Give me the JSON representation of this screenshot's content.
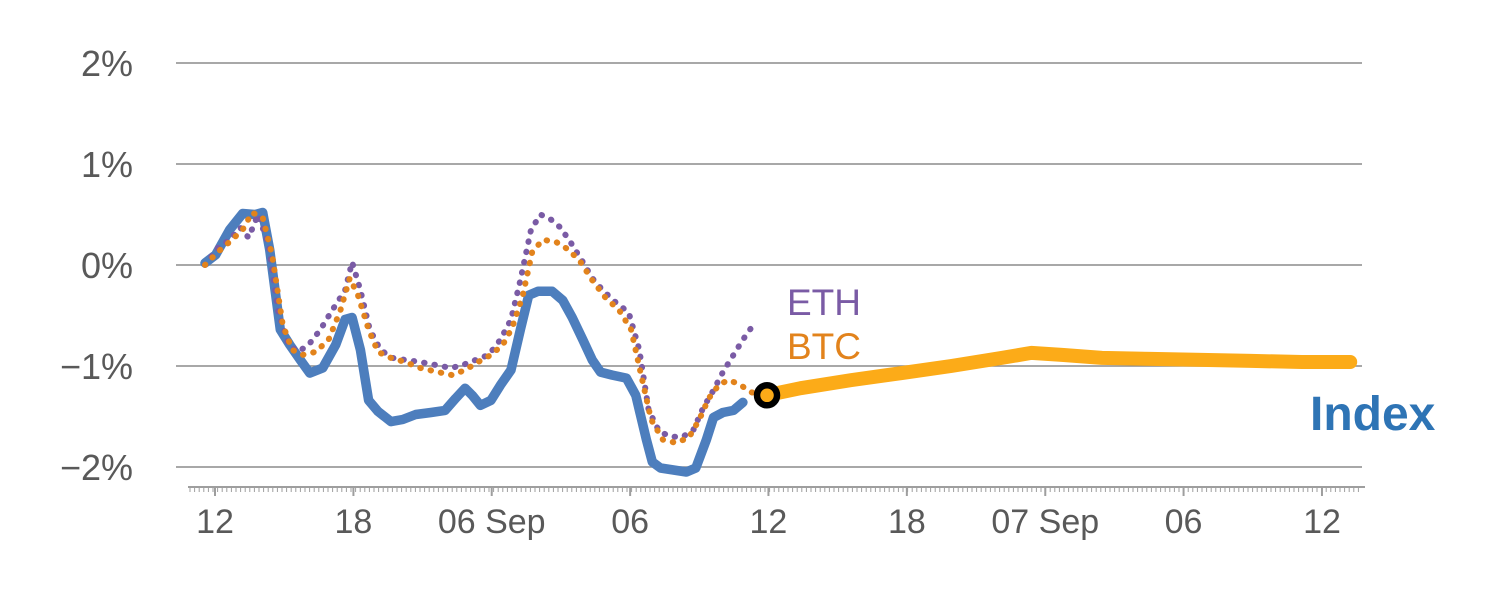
{
  "chart_data": {
    "type": "line",
    "title": "",
    "y_axis": {
      "ticks": [
        {
          "v": 2,
          "label": "2%"
        },
        {
          "v": 1,
          "label": "1%"
        },
        {
          "v": 0,
          "label": "0%"
        },
        {
          "v": -1,
          "label": "−1%"
        },
        {
          "v": -2,
          "label": "−2%"
        }
      ],
      "ylim": [
        -2.2,
        2.2
      ],
      "grid": true
    },
    "x_axis": {
      "ticks": [
        {
          "u": 2.55,
          "label": "12"
        },
        {
          "u": 14.31,
          "label": "18"
        },
        {
          "u": 26.06,
          "label": "06 Sep"
        },
        {
          "u": 37.82,
          "label": "06"
        },
        {
          "u": 49.57,
          "label": "12"
        },
        {
          "u": 61.33,
          "label": "18"
        },
        {
          "u": 73.09,
          "label": "07 Sep"
        },
        {
          "u": 84.84,
          "label": "06"
        },
        {
          "u": 96.6,
          "label": "12"
        }
      ]
    },
    "series": [
      {
        "id": "index",
        "color": "#4d7ebd",
        "width": 9.5,
        "dash": "solid",
        "points": [
          [
            1.7,
            0.02
          ],
          [
            2.6,
            0.1
          ],
          [
            3.8,
            0.35
          ],
          [
            4.9,
            0.51
          ],
          [
            6.0,
            0.5
          ],
          [
            6.6,
            0.52
          ],
          [
            7.2,
            0.15
          ],
          [
            8.1,
            -0.64
          ],
          [
            8.9,
            -0.79
          ],
          [
            9.8,
            -0.94
          ],
          [
            10.6,
            -1.07
          ],
          [
            11.7,
            -1.02
          ],
          [
            12.8,
            -0.79
          ],
          [
            13.6,
            -0.54
          ],
          [
            14.2,
            -0.52
          ],
          [
            14.9,
            -0.84
          ],
          [
            15.6,
            -1.34
          ],
          [
            16.4,
            -1.45
          ],
          [
            17.5,
            -1.55
          ],
          [
            18.5,
            -1.53
          ],
          [
            19.6,
            -1.48
          ],
          [
            20.9,
            -1.46
          ],
          [
            22.1,
            -1.44
          ],
          [
            23.0,
            -1.32
          ],
          [
            23.8,
            -1.22
          ],
          [
            24.4,
            -1.29
          ],
          [
            25.1,
            -1.39
          ],
          [
            26.0,
            -1.34
          ],
          [
            26.8,
            -1.19
          ],
          [
            27.7,
            -1.04
          ],
          [
            28.5,
            -0.64
          ],
          [
            29.2,
            -0.3
          ],
          [
            30.0,
            -0.26
          ],
          [
            31.2,
            -0.26
          ],
          [
            32.1,
            -0.35
          ],
          [
            32.9,
            -0.52
          ],
          [
            33.8,
            -0.74
          ],
          [
            34.6,
            -0.94
          ],
          [
            35.3,
            -1.06
          ],
          [
            36.3,
            -1.09
          ],
          [
            37.5,
            -1.12
          ],
          [
            38.3,
            -1.29
          ],
          [
            39.2,
            -1.73
          ],
          [
            39.7,
            -1.95
          ],
          [
            40.4,
            -2.01
          ],
          [
            41.5,
            -2.03
          ],
          [
            42.6,
            -2.05
          ],
          [
            43.4,
            -2.01
          ],
          [
            44.3,
            -1.73
          ],
          [
            44.9,
            -1.51
          ],
          [
            45.7,
            -1.46
          ],
          [
            46.6,
            -1.44
          ],
          [
            47.4,
            -1.36
          ]
        ]
      },
      {
        "id": "eth",
        "color": "#7a5ba5",
        "width": 6,
        "dash": "dotted",
        "points": [
          [
            1.7,
            0.0
          ],
          [
            2.8,
            0.17
          ],
          [
            3.8,
            0.25
          ],
          [
            4.7,
            0.37
          ],
          [
            5.4,
            0.27
          ],
          [
            6.2,
            0.5
          ],
          [
            7.1,
            0.2
          ],
          [
            7.9,
            -0.45
          ],
          [
            8.8,
            -0.79
          ],
          [
            9.6,
            -0.86
          ],
          [
            10.5,
            -0.79
          ],
          [
            11.5,
            -0.64
          ],
          [
            12.5,
            -0.45
          ],
          [
            13.6,
            -0.25
          ],
          [
            14.2,
            0.03
          ],
          [
            14.9,
            -0.25
          ],
          [
            15.7,
            -0.64
          ],
          [
            16.6,
            -0.84
          ],
          [
            17.6,
            -0.92
          ],
          [
            18.7,
            -0.94
          ],
          [
            20.0,
            -0.96
          ],
          [
            21.3,
            -0.99
          ],
          [
            22.6,
            -1.02
          ],
          [
            23.6,
            -0.99
          ],
          [
            24.7,
            -0.94
          ],
          [
            25.8,
            -0.89
          ],
          [
            26.8,
            -0.74
          ],
          [
            27.7,
            -0.54
          ],
          [
            28.5,
            -0.15
          ],
          [
            29.4,
            0.35
          ],
          [
            30.2,
            0.5
          ],
          [
            31.1,
            0.45
          ],
          [
            31.9,
            0.37
          ],
          [
            32.9,
            0.2
          ],
          [
            33.8,
            0.03
          ],
          [
            34.6,
            -0.13
          ],
          [
            35.5,
            -0.25
          ],
          [
            36.6,
            -0.37
          ],
          [
            37.7,
            -0.47
          ],
          [
            38.6,
            -0.84
          ],
          [
            39.4,
            -1.44
          ],
          [
            40.3,
            -1.65
          ],
          [
            41.3,
            -1.7
          ],
          [
            42.3,
            -1.7
          ],
          [
            43.2,
            -1.63
          ],
          [
            44.0,
            -1.42
          ],
          [
            44.9,
            -1.24
          ],
          [
            45.7,
            -1.06
          ],
          [
            46.6,
            -0.89
          ],
          [
            47.4,
            -0.74
          ],
          [
            48.3,
            -0.59
          ]
        ]
      },
      {
        "id": "btc",
        "color": "#e2831c",
        "width": 6,
        "dash": "dotted",
        "points": [
          [
            1.7,
            0.0
          ],
          [
            2.8,
            0.13
          ],
          [
            3.8,
            0.23
          ],
          [
            4.9,
            0.35
          ],
          [
            5.7,
            0.52
          ],
          [
            6.6,
            0.47
          ],
          [
            7.4,
            0.1
          ],
          [
            8.3,
            -0.59
          ],
          [
            9.1,
            -0.84
          ],
          [
            10.0,
            -0.89
          ],
          [
            11.1,
            -0.86
          ],
          [
            12.2,
            -0.74
          ],
          [
            13.2,
            -0.45
          ],
          [
            14.0,
            -0.13
          ],
          [
            14.7,
            -0.3
          ],
          [
            15.6,
            -0.64
          ],
          [
            16.4,
            -0.86
          ],
          [
            17.5,
            -0.92
          ],
          [
            18.7,
            -0.96
          ],
          [
            20.0,
            -1.02
          ],
          [
            21.5,
            -1.06
          ],
          [
            22.7,
            -1.09
          ],
          [
            23.8,
            -1.04
          ],
          [
            24.9,
            -0.96
          ],
          [
            26.0,
            -0.89
          ],
          [
            27.0,
            -0.79
          ],
          [
            27.8,
            -0.62
          ],
          [
            28.7,
            -0.3
          ],
          [
            29.5,
            0.13
          ],
          [
            30.4,
            0.25
          ],
          [
            31.5,
            0.23
          ],
          [
            32.6,
            0.15
          ],
          [
            33.6,
            0.03
          ],
          [
            34.6,
            -0.15
          ],
          [
            35.7,
            -0.32
          ],
          [
            36.9,
            -0.45
          ],
          [
            37.9,
            -0.64
          ],
          [
            38.7,
            -1.06
          ],
          [
            39.6,
            -1.53
          ],
          [
            40.6,
            -1.73
          ],
          [
            41.7,
            -1.76
          ],
          [
            42.8,
            -1.71
          ],
          [
            43.7,
            -1.53
          ],
          [
            44.5,
            -1.32
          ],
          [
            45.4,
            -1.18
          ],
          [
            46.2,
            -1.14
          ],
          [
            47.1,
            -1.18
          ],
          [
            48.1,
            -1.26
          ],
          [
            49.1,
            -1.28
          ]
        ]
      },
      {
        "id": "btc_continued",
        "color": "#fcab18",
        "width": 14,
        "dash": "solid",
        "points": [
          [
            49.4,
            -1.29
          ],
          [
            52.3,
            -1.22
          ],
          [
            56.6,
            -1.14
          ],
          [
            60.9,
            -1.07
          ],
          [
            65.1,
            -1.0
          ],
          [
            69.4,
            -0.92
          ],
          [
            71.9,
            -0.87
          ],
          [
            74.5,
            -0.89
          ],
          [
            77.9,
            -0.92
          ],
          [
            82.1,
            -0.93
          ],
          [
            86.4,
            -0.94
          ],
          [
            90.6,
            -0.95
          ],
          [
            94.9,
            -0.96
          ],
          [
            99.0,
            -0.96
          ]
        ]
      }
    ],
    "marker": {
      "u": 49.45,
      "v": -1.29,
      "color": "#000000"
    },
    "annotations": [
      {
        "text": "ETH",
        "color": "#7a5ba5"
      },
      {
        "text": "BTC",
        "color": "#e2831c"
      },
      {
        "text": "Index",
        "color": "#2e74b5"
      }
    ],
    "style": {
      "gridline_color": "#8c8c8c",
      "axis_line_color": "#9e9e9e",
      "axis_text_color": "#595959"
    }
  }
}
